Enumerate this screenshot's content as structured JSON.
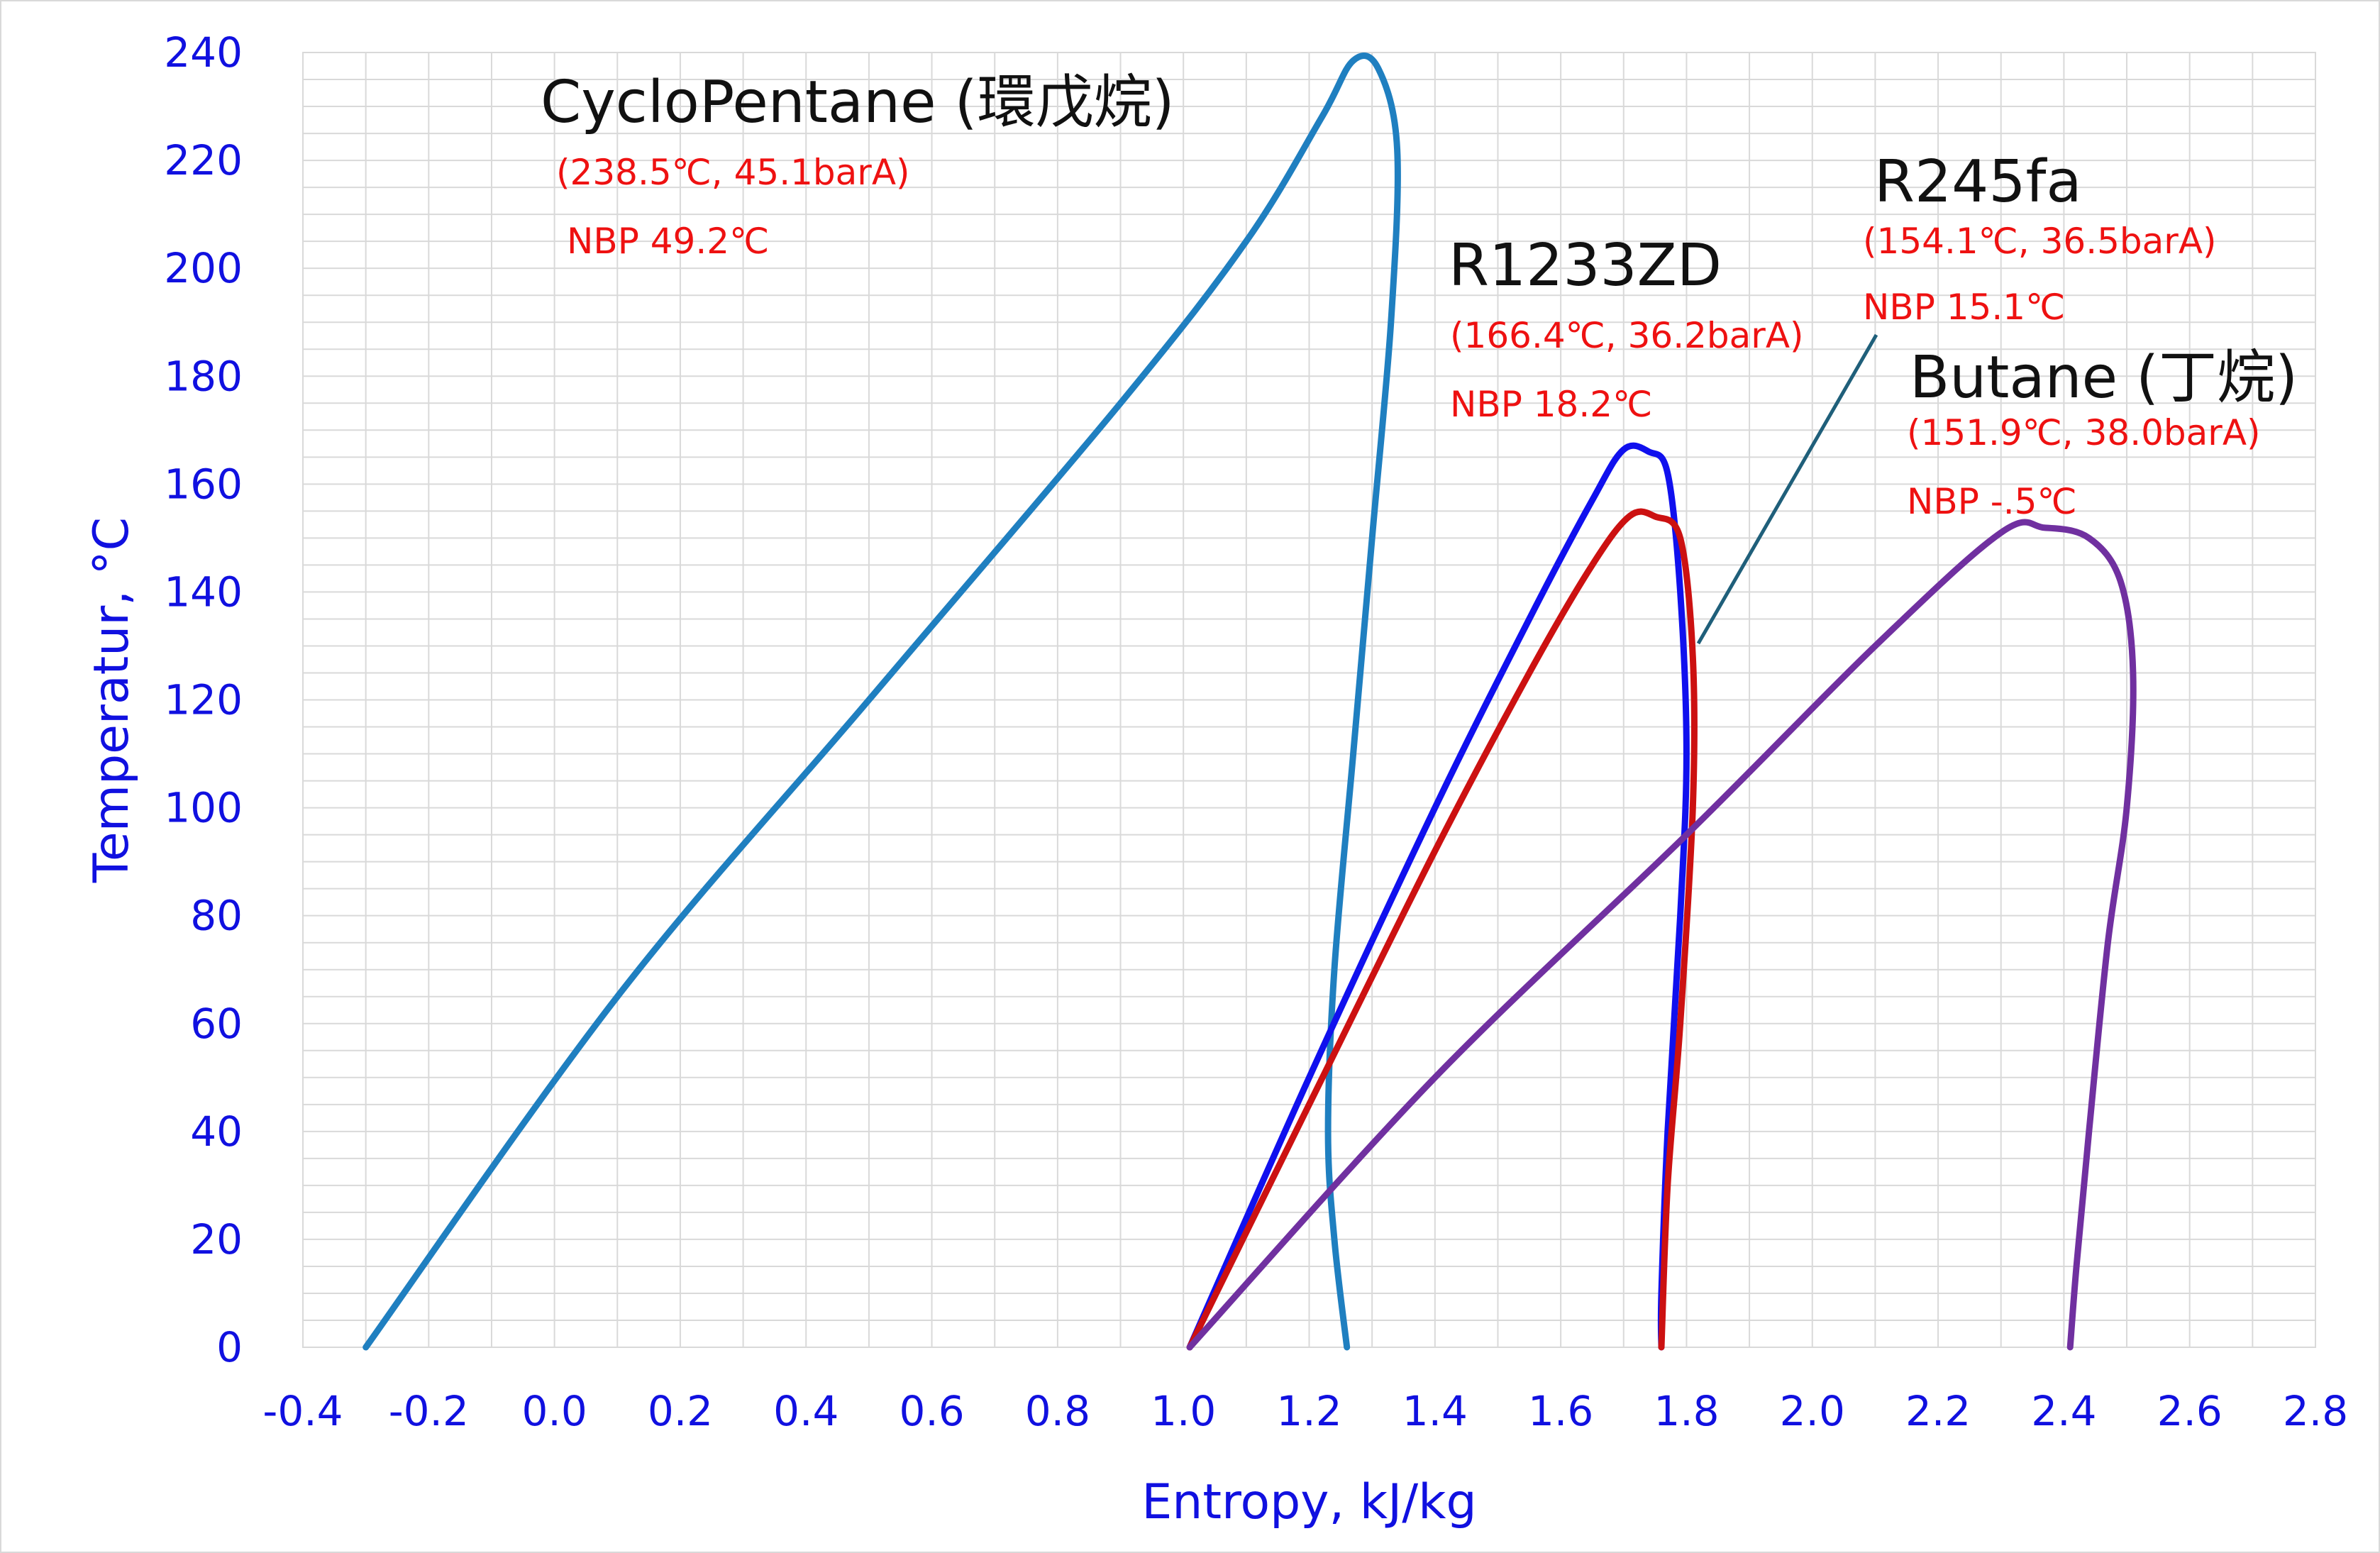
{
  "chart_data": {
    "type": "line",
    "xlabel": "Entropy, kJ/kg",
    "ylabel": "Temperatur, °C",
    "xlim": [
      -0.4,
      2.8
    ],
    "ylim": [
      0,
      240
    ],
    "x_ticks": [
      "-0.4",
      "-0.2",
      "0.0",
      "0.2",
      "0.4",
      "0.6",
      "0.8",
      "1.0",
      "1.2",
      "1.4",
      "1.6",
      "1.8",
      "2.0",
      "2.2",
      "2.4",
      "2.6",
      "2.8"
    ],
    "y_ticks": [
      "0",
      "20",
      "40",
      "60",
      "80",
      "100",
      "120",
      "140",
      "160",
      "180",
      "200",
      "220",
      "240"
    ],
    "grid": true,
    "legend": "none",
    "series": [
      {
        "name": "CycloPentane (環戊烷)",
        "color": "#1f7fc0",
        "critical": "(238.5℃, 45.1barA)",
        "nbp": "NBP 49.2℃",
        "points": [
          [
            -0.3,
            0
          ],
          [
            0.1,
            65
          ],
          [
            0.5,
            120
          ],
          [
            0.9,
            175
          ],
          [
            1.1,
            205
          ],
          [
            1.22,
            228
          ],
          [
            1.27,
            238.5
          ],
          [
            1.31,
            237
          ],
          [
            1.34,
            222
          ],
          [
            1.33,
            190
          ],
          [
            1.3,
            150
          ],
          [
            1.27,
            110
          ],
          [
            1.24,
            70
          ],
          [
            1.23,
            40
          ],
          [
            1.24,
            20
          ],
          [
            1.26,
            0
          ]
        ]
      },
      {
        "name": "R1233ZD",
        "color": "#1010ee",
        "critical": "(166.4℃, 36.2barA)",
        "nbp": "NBP 18.2℃",
        "points": [
          [
            1.01,
            0
          ],
          [
            1.2,
            50
          ],
          [
            1.4,
            100
          ],
          [
            1.55,
            135
          ],
          [
            1.65,
            157
          ],
          [
            1.7,
            166.4
          ],
          [
            1.74,
            166
          ],
          [
            1.77,
            162
          ],
          [
            1.79,
            140
          ],
          [
            1.8,
            110
          ],
          [
            1.79,
            80
          ],
          [
            1.77,
            40
          ],
          [
            1.76,
            10
          ],
          [
            1.76,
            0
          ]
        ]
      },
      {
        "name": "R245fa",
        "color": "#cc1111",
        "critical": "(154.1℃, 36.5barA)",
        "nbp": "NBP 15.1℃",
        "points": [
          [
            1.01,
            0
          ],
          [
            1.2,
            45
          ],
          [
            1.4,
            92
          ],
          [
            1.55,
            125
          ],
          [
            1.65,
            145
          ],
          [
            1.71,
            154.1
          ],
          [
            1.75,
            154
          ],
          [
            1.79,
            150
          ],
          [
            1.81,
            128
          ],
          [
            1.81,
            100
          ],
          [
            1.79,
            60
          ],
          [
            1.77,
            30
          ],
          [
            1.76,
            0
          ]
        ]
      },
      {
        "name": "Butane (丁烷)",
        "color": "#7030a0",
        "critical": "(151.9℃, 38.0barA)",
        "nbp": "NBP -.5℃",
        "points": [
          [
            1.01,
            0
          ],
          [
            1.4,
            50
          ],
          [
            1.8,
            95
          ],
          [
            2.1,
            130
          ],
          [
            2.3,
            151
          ],
          [
            2.37,
            151.9
          ],
          [
            2.44,
            150
          ],
          [
            2.49,
            142
          ],
          [
            2.51,
            125
          ],
          [
            2.5,
            100
          ],
          [
            2.47,
            75
          ],
          [
            2.44,
            40
          ],
          [
            2.42,
            15
          ],
          [
            2.41,
            0
          ]
        ]
      }
    ]
  }
}
